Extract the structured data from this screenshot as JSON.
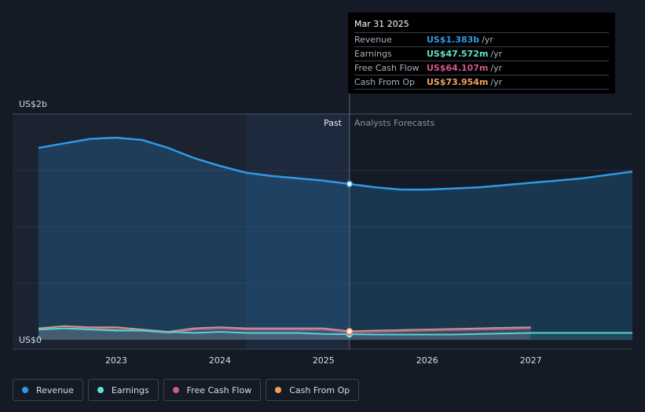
{
  "chart_data": {
    "type": "area",
    "y_unit_top": "US$2b",
    "y_unit_bottom": "US$0",
    "ylim": [
      0,
      2.0
    ],
    "xlim": [
      2022.25,
      2027.98
    ],
    "x_ticks": [
      "2023",
      "2024",
      "2025",
      "2026",
      "2027"
    ],
    "past_label": "Past",
    "forecast_label": "Analysts Forecasts",
    "series": [
      {
        "name": "Revenue",
        "color": "#2e9ae6",
        "x": [
          2022.25,
          2022.5,
          2022.75,
          2023.0,
          2023.25,
          2023.5,
          2023.75,
          2024.0,
          2024.25,
          2024.5,
          2024.75,
          2025.0,
          2025.25,
          2025.5,
          2025.75,
          2026.0,
          2026.25,
          2026.5,
          2026.75,
          2027.0,
          2027.25,
          2027.5,
          2027.98
        ],
        "y": [
          1.7,
          1.74,
          1.78,
          1.79,
          1.77,
          1.7,
          1.61,
          1.54,
          1.48,
          1.45,
          1.43,
          1.41,
          1.38,
          1.35,
          1.33,
          1.33,
          1.34,
          1.35,
          1.37,
          1.39,
          1.41,
          1.43,
          1.49
        ]
      },
      {
        "name": "Earnings",
        "color": "#5fe3cf",
        "x": [
          2022.25,
          2022.5,
          2022.75,
          2023.0,
          2023.25,
          2023.5,
          2023.75,
          2024.0,
          2024.25,
          2024.5,
          2024.75,
          2025.0,
          2025.25,
          2025.5,
          2025.75,
          2026.0,
          2026.25,
          2026.5,
          2026.75,
          2027.0,
          2027.25,
          2027.5,
          2027.98
        ],
        "y": [
          0.09,
          0.1,
          0.09,
          0.08,
          0.08,
          0.07,
          0.06,
          0.07,
          0.06,
          0.06,
          0.06,
          0.05,
          0.048,
          0.045,
          0.045,
          0.045,
          0.045,
          0.05,
          0.055,
          0.06,
          0.06,
          0.06,
          0.06
        ]
      },
      {
        "name": "Free Cash Flow",
        "color": "#d4578a",
        "x": [
          2022.25,
          2022.5,
          2022.75,
          2023.0,
          2023.25,
          2023.5,
          2023.75,
          2024.0,
          2024.25,
          2024.5,
          2024.75,
          2025.0,
          2025.25,
          2025.5,
          2025.75,
          2026.0,
          2026.25,
          2026.5,
          2026.75,
          2027.0
        ],
        "y": [
          0.09,
          0.1,
          0.1,
          0.09,
          0.08,
          0.06,
          0.09,
          0.1,
          0.09,
          0.09,
          0.09,
          0.09,
          0.064,
          0.07,
          0.075,
          0.08,
          0.085,
          0.09,
          0.095,
          0.1
        ]
      },
      {
        "name": "Cash From Op",
        "color": "#f0a35e",
        "x": [
          2022.25,
          2022.5,
          2022.75,
          2023.0,
          2023.25,
          2023.5,
          2023.75,
          2024.0,
          2024.25,
          2024.5,
          2024.75,
          2025.0,
          2025.25,
          2025.5,
          2025.75,
          2026.0,
          2026.25,
          2026.5,
          2026.75,
          2027.0
        ],
        "y": [
          0.1,
          0.12,
          0.11,
          0.11,
          0.09,
          0.07,
          0.1,
          0.11,
          0.1,
          0.1,
          0.1,
          0.1,
          0.074,
          0.08,
          0.085,
          0.09,
          0.095,
          0.1,
          0.105,
          0.11
        ]
      }
    ],
    "highlight_x": 2025.25,
    "highlight_band_start": 2024.25
  },
  "tooltip": {
    "date": "Mar 31 2025",
    "rows": [
      {
        "label": "Revenue",
        "value": "US$1.383b",
        "unit": "/yr",
        "color": "#2e9ae6"
      },
      {
        "label": "Earnings",
        "value": "US$47.572m",
        "unit": "/yr",
        "color": "#5fe3cf"
      },
      {
        "label": "Free Cash Flow",
        "value": "US$64.107m",
        "unit": "/yr",
        "color": "#d4578a"
      },
      {
        "label": "Cash From Op",
        "value": "US$73.954m",
        "unit": "/yr",
        "color": "#f0a35e"
      }
    ]
  },
  "legend": [
    {
      "label": "Revenue",
      "color": "#2e9ae6",
      "icon": "revenue-dot-icon"
    },
    {
      "label": "Earnings",
      "color": "#5fe3cf",
      "icon": "earnings-dot-icon"
    },
    {
      "label": "Free Cash Flow",
      "color": "#d4578a",
      "icon": "free-cash-flow-dot-icon"
    },
    {
      "label": "Cash From Op",
      "color": "#f0a35e",
      "icon": "cash-from-op-dot-icon"
    }
  ]
}
